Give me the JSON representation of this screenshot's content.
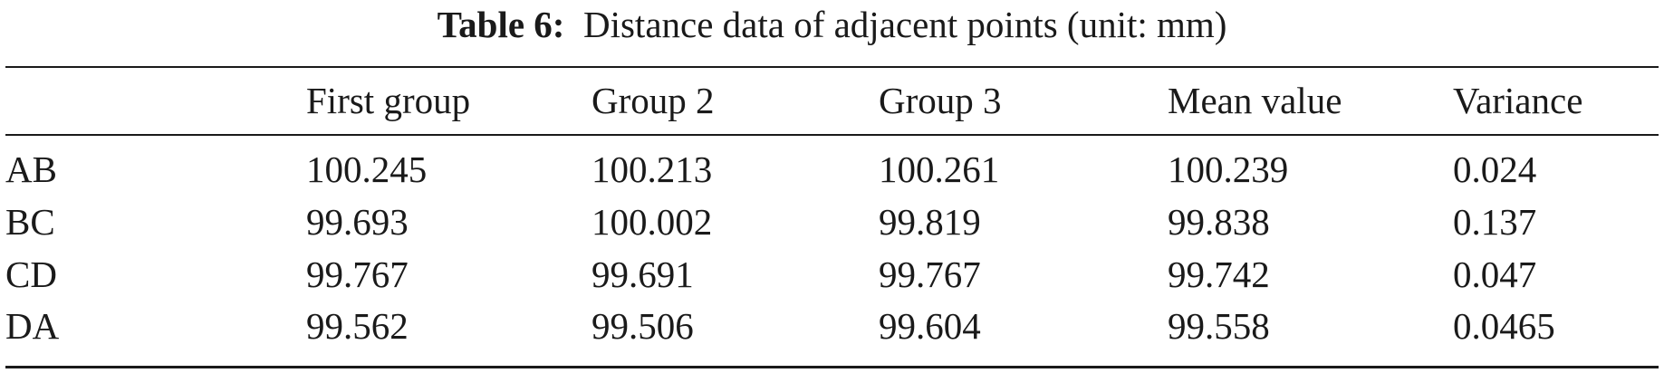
{
  "caption": {
    "label": "Table 6:",
    "text": "Distance data of adjacent points (unit: mm)"
  },
  "table": {
    "columns": [
      "",
      "First group",
      "Group 2",
      "Group 3",
      "Mean value",
      "Variance"
    ],
    "rows": [
      [
        "AB",
        "100.245",
        "100.213",
        "100.261",
        "100.239",
        "0.024"
      ],
      [
        "BC",
        "99.693",
        "100.002",
        "99.819",
        "99.838",
        "0.137"
      ],
      [
        "CD",
        "99.767",
        "99.691",
        "99.767",
        "99.742",
        "0.047"
      ],
      [
        "DA",
        "99.562",
        "99.506",
        "99.604",
        "99.558",
        "0.0465"
      ]
    ]
  }
}
